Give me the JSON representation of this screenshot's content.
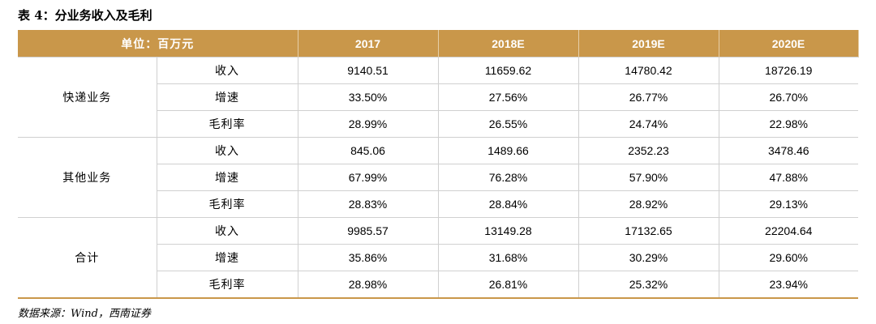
{
  "title": "表 4：分业务收入及毛利",
  "table": {
    "header": [
      "单位：百万元",
      "2017",
      "2018E",
      "2019E",
      "2020E"
    ],
    "groups": [
      {
        "name": "快递业务",
        "rows": [
          [
            "收入",
            "9140.51",
            "11659.62",
            "14780.42",
            "18726.19"
          ],
          [
            "增速",
            "33.50%",
            "27.56%",
            "26.77%",
            "26.70%"
          ],
          [
            "毛利率",
            "28.99%",
            "26.55%",
            "24.74%",
            "22.98%"
          ]
        ]
      },
      {
        "name": "其他业务",
        "rows": [
          [
            "收入",
            "845.06",
            "1489.66",
            "2352.23",
            "3478.46"
          ],
          [
            "增速",
            "67.99%",
            "76.28%",
            "57.90%",
            "47.88%"
          ],
          [
            "毛利率",
            "28.83%",
            "28.84%",
            "28.92%",
            "29.13%"
          ]
        ]
      },
      {
        "name": "合计",
        "rows": [
          [
            "收入",
            "9985.57",
            "13149.28",
            "17132.65",
            "22204.64"
          ],
          [
            "增速",
            "35.86%",
            "31.68%",
            "30.29%",
            "29.60%"
          ],
          [
            "毛利率",
            "28.98%",
            "26.81%",
            "25.32%",
            "23.94%"
          ]
        ]
      }
    ]
  },
  "source": "数据来源：Wind，西南证券"
}
